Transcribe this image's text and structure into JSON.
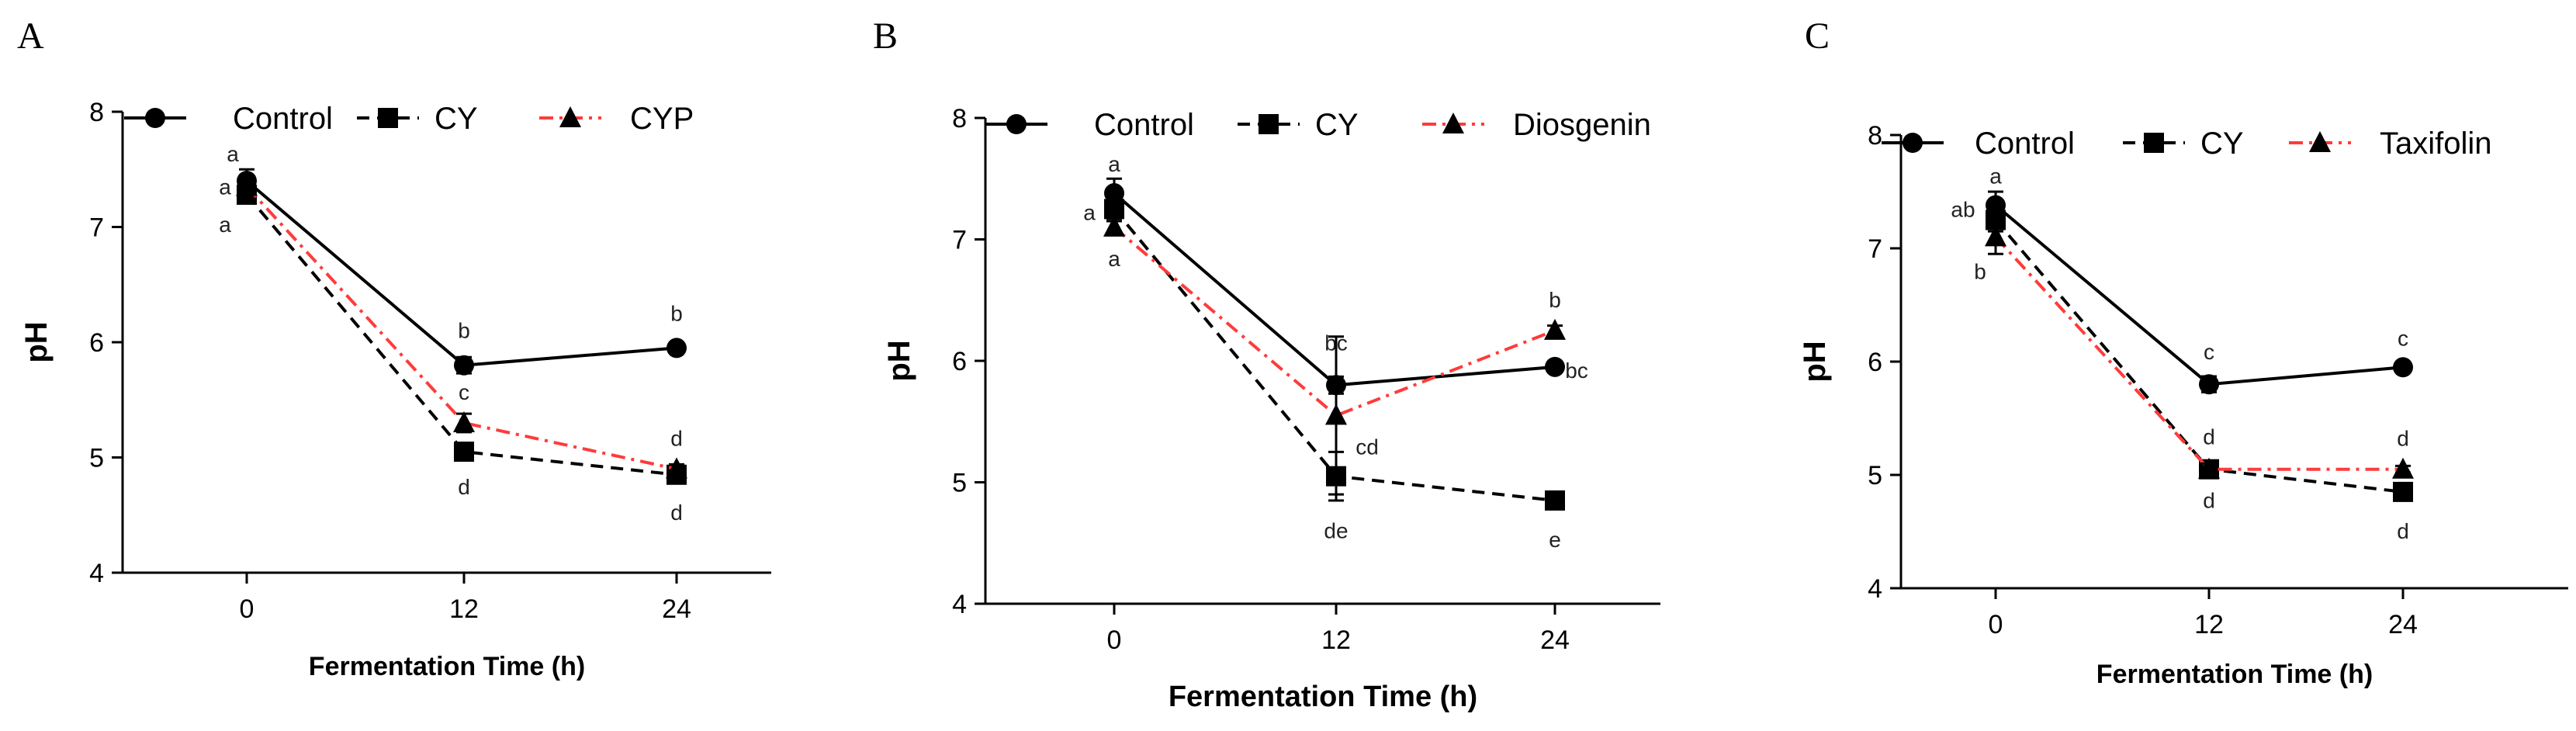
{
  "chart_data": [
    {
      "type": "line",
      "panel_label": "A",
      "title": "",
      "xlabel": "Fermentation Time (h)",
      "ylabel": "pH",
      "x": [
        0,
        12,
        24
      ],
      "xticks": [
        "0",
        "12",
        "24"
      ],
      "ylim": [
        4,
        8
      ],
      "yticks": [
        "4",
        "5",
        "6",
        "7",
        "8"
      ],
      "legend_position": "top",
      "series": [
        {
          "name": "Control",
          "marker": "circle",
          "line": "solid",
          "color": "#000000",
          "values": [
            7.4,
            5.8,
            5.95
          ],
          "errors": [
            0.1,
            0.07,
            0.03
          ],
          "letters": [
            "a",
            "b",
            "b"
          ]
        },
        {
          "name": "CY",
          "marker": "square",
          "line": "dashed",
          "color": "#000000",
          "values": [
            7.28,
            5.05,
            4.85
          ],
          "errors": [
            0.05,
            0.05,
            0.06
          ],
          "letters": [
            "a",
            "d",
            "d"
          ]
        },
        {
          "name": "CYP",
          "marker": "triangle",
          "line": "dashdot",
          "color": "#ff3b3b",
          "values": [
            7.35,
            5.3,
            4.9
          ],
          "errors": [
            0.06,
            0.08,
            0.04
          ],
          "letters": [
            "a",
            "c",
            "d"
          ]
        }
      ]
    },
    {
      "type": "line",
      "panel_label": "B",
      "title": "",
      "xlabel": "Fermentation Time (h)",
      "ylabel": "pH",
      "x": [
        0,
        12,
        24
      ],
      "xticks": [
        "0",
        "12",
        "24"
      ],
      "ylim": [
        4,
        8
      ],
      "yticks": [
        "4",
        "5",
        "6",
        "7",
        "8"
      ],
      "legend_position": "top",
      "series": [
        {
          "name": "Control",
          "marker": "circle",
          "line": "solid",
          "color": "#000000",
          "values": [
            7.38,
            5.8,
            5.95
          ],
          "errors": [
            0.12,
            0.07,
            0.03
          ],
          "letters": [
            "a",
            "bc",
            "bc"
          ]
        },
        {
          "name": "CY",
          "marker": "square",
          "line": "dashed",
          "color": "#000000",
          "values": [
            7.25,
            5.05,
            4.85
          ],
          "errors": [
            0.08,
            0.2,
            0.06
          ],
          "letters": [
            "a",
            "de",
            "e"
          ]
        },
        {
          "name": "Diosgenin",
          "marker": "triangle",
          "line": "dashdot",
          "color": "#ff3b3b",
          "values": [
            7.1,
            5.55,
            6.25
          ],
          "errors": [
            0.05,
            0.65,
            0.04
          ],
          "letters": [
            "a",
            "cd",
            "b"
          ]
        }
      ]
    },
    {
      "type": "line",
      "panel_label": "C",
      "title": "",
      "xlabel": "Fermentation Time (h)",
      "ylabel": "pH",
      "x": [
        0,
        12,
        24
      ],
      "xticks": [
        "0",
        "12",
        "24"
      ],
      "ylim": [
        4,
        8
      ],
      "yticks": [
        "4",
        "5",
        "6",
        "7",
        "8"
      ],
      "legend_position": "top",
      "series": [
        {
          "name": "Control",
          "marker": "circle",
          "line": "solid",
          "color": "#000000",
          "values": [
            7.38,
            5.8,
            5.95
          ],
          "errors": [
            0.12,
            0.07,
            0.03
          ],
          "letters": [
            "a",
            "c",
            "c"
          ]
        },
        {
          "name": "CY",
          "marker": "square",
          "line": "dashed",
          "color": "#000000",
          "values": [
            7.25,
            5.05,
            4.85
          ],
          "errors": [
            0.1,
            0.05,
            0.06
          ],
          "letters": [
            "ab",
            "d",
            "d"
          ]
        },
        {
          "name": "Taxifolin",
          "marker": "triangle",
          "line": "dashdot",
          "color": "#ff3b3b",
          "values": [
            7.1,
            5.05,
            5.05
          ],
          "errors": [
            0.15,
            0.05,
            0.03
          ],
          "letters": [
            "b",
            "d",
            "d"
          ]
        }
      ]
    }
  ]
}
